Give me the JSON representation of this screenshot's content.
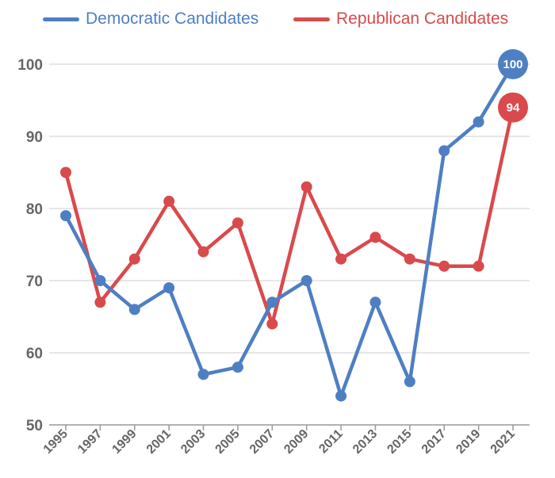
{
  "chart_data": {
    "type": "line",
    "x": [
      "1995",
      "1997",
      "1999",
      "2001",
      "2003",
      "2005",
      "2007",
      "2009",
      "2011",
      "2013",
      "2015",
      "2017",
      "2019",
      "2021"
    ],
    "ylim": [
      50,
      100
    ],
    "yticks": [
      50,
      60,
      70,
      80,
      90,
      100
    ],
    "grid": true,
    "legend_position": "top",
    "series": [
      {
        "name": "Democratic Candidates",
        "color": "#4e7fc3",
        "values": [
          79,
          70,
          66,
          69,
          57,
          58,
          67,
          70,
          54,
          67,
          56,
          88,
          92,
          100
        ],
        "end_label": "100"
      },
      {
        "name": "Republican Candidates",
        "color": "#d94a4c",
        "values": [
          85,
          67,
          73,
          81,
          74,
          78,
          64,
          83,
          73,
          76,
          73,
          72,
          72,
          94
        ],
        "end_label": "94"
      }
    ]
  }
}
